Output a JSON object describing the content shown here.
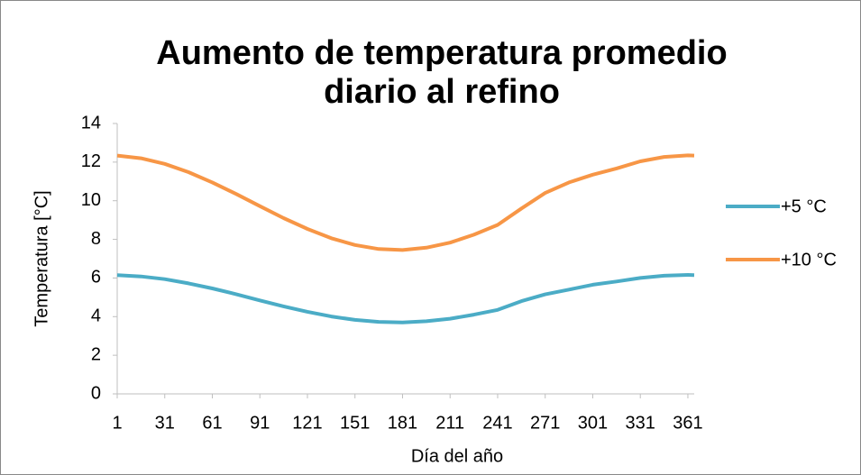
{
  "chart_data": {
    "type": "line",
    "title": "Aumento de temperatura promedio diario al refino",
    "x_label": "Día del año",
    "y_label": "Temperatura [°C]",
    "x": [
      1,
      16,
      31,
      46,
      61,
      76,
      91,
      106,
      121,
      136,
      151,
      166,
      181,
      196,
      211,
      226,
      241,
      256,
      271,
      286,
      301,
      316,
      331,
      346,
      361,
      365
    ],
    "series": [
      {
        "name": "+5 °C",
        "color": "#4bacc6",
        "values": [
          6.15,
          6.08,
          5.94,
          5.72,
          5.46,
          5.16,
          4.84,
          4.53,
          4.25,
          4.01,
          3.83,
          3.73,
          3.7,
          3.76,
          3.89,
          4.1,
          4.35,
          4.8,
          5.15,
          5.4,
          5.65,
          5.82,
          6.0,
          6.12,
          6.16,
          6.15
        ]
      },
      {
        "name": "+10 °C",
        "color": "#f79646",
        "values": [
          12.34,
          12.2,
          11.91,
          11.48,
          10.95,
          10.35,
          9.72,
          9.1,
          8.54,
          8.06,
          7.71,
          7.5,
          7.45,
          7.57,
          7.83,
          8.24,
          8.75,
          9.6,
          10.4,
          10.95,
          11.35,
          11.67,
          12.04,
          12.27,
          12.35,
          12.34
        ]
      }
    ],
    "xlim": [
      1,
      365
    ],
    "xticks": [
      1,
      31,
      61,
      91,
      121,
      151,
      181,
      211,
      241,
      271,
      301,
      331,
      361
    ],
    "ylim": [
      0,
      14
    ],
    "yticks": [
      0,
      2,
      4,
      6,
      8,
      10,
      12,
      14
    ],
    "grid": false,
    "legend": "right"
  }
}
